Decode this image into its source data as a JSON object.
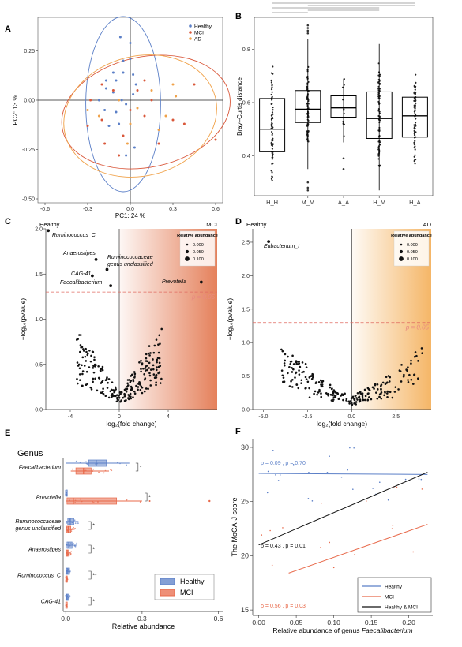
{
  "chart_data": [
    {
      "panel": "A",
      "type": "scatter",
      "xlabel": "PC1: 24 %",
      "ylabel": "PC2: 13 %",
      "xticks": [
        "-0.6",
        "-0.3",
        "0.0",
        "0.3",
        "0.6"
      ],
      "yticks": [
        "-0.50",
        "-0.25",
        "0.00",
        "0.25"
      ],
      "xlim": [
        -0.65,
        0.65
      ],
      "ylim": [
        -0.52,
        0.42
      ],
      "legend": [
        "Healthy",
        "MCI",
        "AD"
      ],
      "colors": {
        "Healthy": "#5b7fc7",
        "MCI": "#d9573a",
        "AD": "#f0a24a"
      },
      "series": [
        {
          "name": "Healthy",
          "points": [
            [
              -0.07,
              0.32
            ],
            [
              0.0,
              0.29
            ],
            [
              0.0,
              0.21
            ],
            [
              -0.05,
              0.2
            ],
            [
              -0.12,
              0.14
            ],
            [
              -0.05,
              0.14
            ],
            [
              0.02,
              0.13
            ],
            [
              -0.17,
              0.1
            ],
            [
              -0.1,
              0.1
            ],
            [
              0.04,
              0.08
            ],
            [
              -0.17,
              0.06
            ],
            [
              -0.12,
              0.04
            ],
            [
              0.02,
              0.03
            ],
            [
              -0.06,
              0.0
            ],
            [
              -0.22,
              0.0
            ],
            [
              -0.03,
              -0.02
            ],
            [
              -0.1,
              -0.06
            ],
            [
              -0.08,
              -0.12
            ],
            [
              -0.15,
              -0.13
            ],
            [
              -0.18,
              -0.05
            ],
            [
              -0.03,
              -0.28
            ],
            [
              0.03,
              -0.24
            ]
          ]
        },
        {
          "name": "MCI",
          "points": [
            [
              0.1,
              0.1
            ],
            [
              0.05,
              0.05
            ],
            [
              0.15,
              0.0
            ],
            [
              -0.12,
              0.05
            ],
            [
              -0.28,
              0.0
            ],
            [
              -0.2,
              -0.1
            ],
            [
              0.1,
              -0.08
            ],
            [
              0.3,
              -0.1
            ],
            [
              0.2,
              -0.22
            ],
            [
              -0.05,
              -0.18
            ],
            [
              -0.18,
              -0.22
            ],
            [
              -0.08,
              -0.28
            ],
            [
              -0.3,
              -0.13
            ],
            [
              0.38,
              -0.12
            ],
            [
              0.45,
              0.08
            ],
            [
              0.6,
              -0.2
            ],
            [
              -0.2,
              0.08
            ],
            [
              0.0,
              -0.05
            ]
          ]
        },
        {
          "name": "AD",
          "points": [
            [
              0.15,
              0.05
            ],
            [
              0.05,
              -0.04
            ],
            [
              0.0,
              -0.12
            ],
            [
              -0.02,
              -0.22
            ],
            [
              0.2,
              -0.15
            ],
            [
              0.3,
              0.08
            ],
            [
              0.32,
              0.02
            ],
            [
              -0.22,
              -0.08
            ],
            [
              -0.08,
              0.0
            ],
            [
              -0.3,
              -0.05
            ],
            [
              0.25,
              -0.08
            ]
          ]
        }
      ]
    },
    {
      "panel": "B",
      "type": "box",
      "ylabel": "Bray–Curtis distance",
      "categories": [
        "H_H",
        "M_M",
        "A_A",
        "H_M",
        "H_A"
      ],
      "yticks": [
        "0.4",
        "0.6",
        "0.8"
      ],
      "ylim": [
        0.25,
        0.92
      ],
      "boxes": [
        {
          "category": "H_H",
          "whislo": 0.27,
          "q1": 0.415,
          "med": 0.5,
          "q3": 0.615,
          "whishi": 0.8
        },
        {
          "category": "M_M",
          "whislo": 0.35,
          "q1": 0.525,
          "med": 0.575,
          "q3": 0.645,
          "whishi": 0.84
        },
        {
          "category": "A_A",
          "whislo": 0.45,
          "q1": 0.545,
          "med": 0.58,
          "q3": 0.625,
          "whishi": 0.69
        },
        {
          "category": "H_M",
          "whislo": 0.27,
          "q1": 0.465,
          "med": 0.54,
          "q3": 0.64,
          "whishi": 0.82
        },
        {
          "category": "H_A",
          "whislo": 0.27,
          "q1": 0.47,
          "med": 0.55,
          "q3": 0.62,
          "whishi": 0.81
        }
      ]
    },
    {
      "panel": "C",
      "type": "scatter",
      "xlabel": "log₂(fold change)",
      "ylabel": "−log₁₀(pvalue)",
      "left_group": "Healthy",
      "right_group": "MCI",
      "xticks": [
        "-4",
        "0",
        "4"
      ],
      "yticks": [
        "0.0",
        "0.5",
        "1.0",
        "1.5",
        "2.0"
      ],
      "xlim": [
        -6,
        8
      ],
      "ylim": [
        0,
        2.0
      ],
      "threshold_label": "p = 0.05",
      "threshold": 1.3,
      "legend_title": "Relative abundance",
      "legend_sizes": [
        "0.000",
        "0.050",
        "0.100"
      ],
      "labeled_points": [
        {
          "label": "Ruminococcus_C",
          "x": -5.8,
          "y": 1.98
        },
        {
          "label": "Anaerostipes",
          "x": -1.9,
          "y": 1.66
        },
        {
          "label": "Ruminococcaceae genus unclassified",
          "x": -1.0,
          "y": 1.55
        },
        {
          "label": "CAG-41",
          "x": -2.2,
          "y": 1.48
        },
        {
          "label": "Faecalibacterium",
          "x": -0.7,
          "y": 1.37
        },
        {
          "label": "Prevotella",
          "x": 6.7,
          "y": 1.41
        }
      ]
    },
    {
      "panel": "D",
      "type": "scatter",
      "xlabel": "log₂(fold change)",
      "ylabel": "−log₁₀(pvalue)",
      "left_group": "Healthy",
      "right_group": "AD",
      "xticks": [
        "-5.0",
        "-2.5",
        "0.0",
        "2.5"
      ],
      "yticks": [
        "0.0",
        "0.5",
        "1.0",
        "1.5",
        "2.0",
        "2.5"
      ],
      "xlim": [
        -5.6,
        4.5
      ],
      "ylim": [
        0,
        2.7
      ],
      "threshold_label": "p = 0.05",
      "threshold": 1.3,
      "legend_title": "Relative abundance",
      "legend_sizes": [
        "0.000",
        "0.050",
        "0.100"
      ],
      "labeled_points": [
        {
          "label": "Eubacterium_I",
          "x": -4.7,
          "y": 2.51
        }
      ]
    },
    {
      "panel": "E",
      "type": "box",
      "title": "Genus",
      "xlabel": "Relative abundance",
      "xticks": [
        "0.0",
        "0.3",
        "0.6"
      ],
      "xlim": [
        -0.01,
        0.62
      ],
      "legend": [
        "Healthy",
        "MCI"
      ],
      "genera": [
        "Faecalibacterium",
        "Prevotella",
        "Ruminococcaceae genus unclassified",
        "Anaerostipes",
        "Ruminococcus_C",
        "CAG-41"
      ],
      "significance": [
        "*",
        "*",
        "*",
        "*",
        "**",
        "*"
      ],
      "boxes": [
        {
          "genus": "Faecalibacterium",
          "group": "Healthy",
          "whislo": 0.0,
          "q1": 0.09,
          "med": 0.12,
          "q3": 0.16,
          "whishi": 0.25
        },
        {
          "genus": "Faecalibacterium",
          "group": "MCI",
          "whislo": 0.02,
          "q1": 0.04,
          "med": 0.07,
          "q3": 0.1,
          "whishi": 0.17
        },
        {
          "genus": "Prevotella",
          "group": "Healthy",
          "whislo": 0.0,
          "q1": 0.0,
          "med": 0.0,
          "q3": 0.002,
          "whishi": 0.005
        },
        {
          "genus": "Prevotella",
          "group": "MCI",
          "whislo": 0.0,
          "q1": 0.005,
          "med": 0.03,
          "q3": 0.2,
          "whishi": 0.3
        },
        {
          "genus": "Ruminococcaceae genus unclassified",
          "group": "Healthy",
          "whislo": 0.0,
          "q1": 0.008,
          "med": 0.018,
          "q3": 0.032,
          "whishi": 0.05
        },
        {
          "genus": "Ruminococcaceae genus unclassified",
          "group": "MCI",
          "whislo": 0.0,
          "q1": 0.004,
          "med": 0.01,
          "q3": 0.02,
          "whishi": 0.035
        },
        {
          "genus": "Anaerostipes",
          "group": "Healthy",
          "whislo": 0.0,
          "q1": 0.005,
          "med": 0.012,
          "q3": 0.025,
          "whishi": 0.045
        },
        {
          "genus": "Anaerostipes",
          "group": "MCI",
          "whislo": 0.0,
          "q1": 0.002,
          "med": 0.006,
          "q3": 0.01,
          "whishi": 0.02
        },
        {
          "genus": "Ruminococcus_C",
          "group": "Healthy",
          "whislo": 0.0,
          "q1": 0.003,
          "med": 0.008,
          "q3": 0.015,
          "whishi": 0.02
        },
        {
          "genus": "Ruminococcus_C",
          "group": "MCI",
          "whislo": 0.0,
          "q1": 0.0,
          "med": 0.002,
          "q3": 0.004,
          "whishi": 0.008
        },
        {
          "genus": "CAG-41",
          "group": "Healthy",
          "whislo": 0.0,
          "q1": 0.002,
          "med": 0.005,
          "q3": 0.01,
          "whishi": 0.015
        },
        {
          "genus": "CAG-41",
          "group": "MCI",
          "whislo": 0.0,
          "q1": 0.0,
          "med": 0.001,
          "q3": 0.003,
          "whishi": 0.006
        }
      ]
    },
    {
      "panel": "F",
      "type": "scatter",
      "xlabel_prefix": "Relative abundance of genus ",
      "xlabel_genus": "Faecalibacterium",
      "ylabel": "The MoCA-J score",
      "xticks": [
        "0.00",
        "0.05",
        "0.10",
        "0.15",
        "0.20"
      ],
      "yticks": [
        "15",
        "20",
        "25",
        "30"
      ],
      "xlim": [
        -0.008,
        0.232
      ],
      "ylim": [
        14.5,
        30.8
      ],
      "legend": [
        "Healthy",
        "MCI",
        "Healthy & MCI"
      ],
      "colors": {
        "Healthy": "#5b7fc7",
        "MCI": "#e8694a",
        "Healthy & MCI": "#111111"
      },
      "stats": [
        {
          "text": "ρ = 0.09 , p = 0.70",
          "color": "#5b7fc7"
        },
        {
          "text": "ρ = 0.43 , p = 0.01",
          "color": "#111111"
        },
        {
          "text": "ρ = 0.56 , p = 0.03",
          "color": "#e8694a"
        }
      ],
      "fits": [
        {
          "name": "Healthy",
          "x": [
            0.0,
            0.225
          ],
          "y": [
            27.6,
            27.5
          ]
        },
        {
          "name": "MCI",
          "x": [
            0.04,
            0.225
          ],
          "y": [
            18.4,
            22.9
          ]
        },
        {
          "name": "Healthy & MCI",
          "x": [
            0.0,
            0.225
          ],
          "y": [
            21.0,
            27.7
          ]
        }
      ]
    }
  ]
}
